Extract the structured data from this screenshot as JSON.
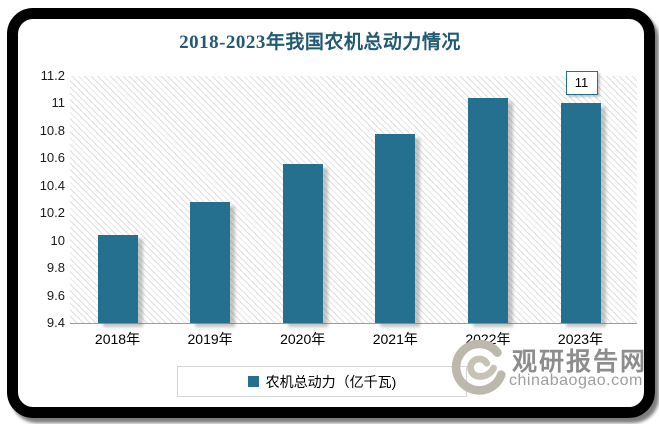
{
  "chart_data": {
    "type": "bar",
    "title": "2018-2023年我国农机总动力情况",
    "categories": [
      "2018年",
      "2019年",
      "2020年",
      "2021年",
      "2022年",
      "2023年"
    ],
    "values": [
      10.04,
      10.28,
      10.56,
      10.78,
      11.04,
      11
    ],
    "series_name": "农机总动力（亿千瓦)",
    "ylim": [
      9.4,
      11.2
    ],
    "ytick_step": 0.2,
    "ytick_labels": [
      "9.4",
      "9.6",
      "9.8",
      "10",
      "10.2",
      "10.4",
      "10.6",
      "10.8",
      "11",
      "11.2"
    ],
    "data_labels": [
      {
        "category_index": 5,
        "text": "11"
      }
    ],
    "legend_position": "bottom",
    "grid": false,
    "bar_color": "#26708F",
    "plot_background": "light-downward-diagonal-hatch"
  },
  "watermark": {
    "site_name": "观研报告网",
    "site_url": "chinabaogao.com"
  },
  "colors": {
    "bar": "#26708F",
    "title_text": "#225A73",
    "axis_text": "#1A1A1A",
    "frame": "#000000",
    "axis_line": "#9C9C9C",
    "legend_border": "#D6D6D6",
    "data_label_border": "#26708F",
    "watermark_text": "#8D8D8D",
    "watermark_url_text": "#9E9E9E",
    "watermark_logo": "#BCB8AB"
  }
}
